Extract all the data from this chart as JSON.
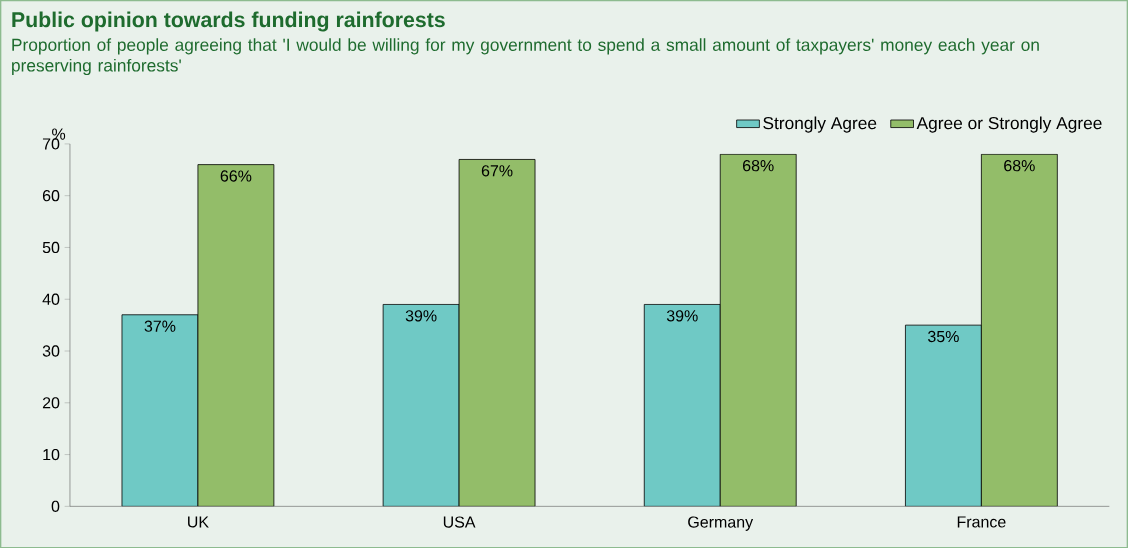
{
  "chart_data": {
    "type": "bar",
    "title": "Public opinion towards funding rainforests",
    "subtitle": "Proportion of people agreeing that 'I would be willing for my government to spend a small amount of taxpayers' money each year on preserving rainforests'",
    "ylabel": "%",
    "categories": [
      "UK",
      "USA",
      "Germany",
      "France"
    ],
    "series": [
      {
        "name": "Strongly Agree",
        "color": "#6fc9c5",
        "values": [
          37,
          39,
          39,
          35
        ],
        "value_labels": [
          "37%",
          "39%",
          "39%",
          "35%"
        ]
      },
      {
        "name": "Agree or Strongly Agree",
        "color": "#93bd69",
        "values": [
          66,
          67,
          68,
          68
        ],
        "value_labels": [
          "66%",
          "67%",
          "68%",
          "68%"
        ]
      }
    ],
    "ylim": [
      0,
      70
    ],
    "yticks": [
      0,
      10,
      20,
      30,
      40,
      50,
      60,
      70
    ],
    "legend": "top right"
  }
}
